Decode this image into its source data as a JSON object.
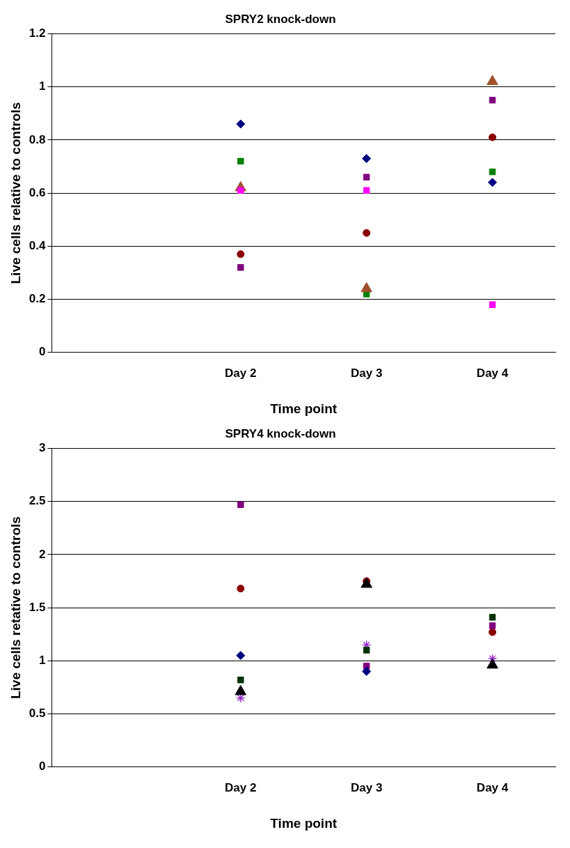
{
  "chart_data": [
    {
      "type": "scatter",
      "title": "SPRY2 knock-down",
      "xlabel": "Time point",
      "ylabel": "Live cells relative to controls",
      "categories": [
        null,
        "Day 2",
        "Day 3",
        "Day 4"
      ],
      "ylim": [
        0,
        1.2
      ],
      "yticks": [
        0,
        0.2,
        0.4,
        0.6,
        0.8,
        1,
        1.2
      ],
      "grid": "y",
      "legend": false,
      "series": [
        {
          "color": "#000080",
          "marker": "diamond",
          "values": [
            null,
            0.86,
            0.73,
            0.64
          ]
        },
        {
          "color": "#ff00ff",
          "marker": "square",
          "values": [
            null,
            0.61,
            0.61,
            0.18
          ]
        },
        {
          "color": "#a0522d",
          "marker": "triangle",
          "values": [
            null,
            0.62,
            0.24,
            1.02
          ]
        },
        {
          "color": "#800080",
          "marker": "square",
          "values": [
            null,
            0.32,
            0.66,
            0.95
          ]
        },
        {
          "color": "#008000",
          "marker": "square",
          "values": [
            null,
            0.72,
            0.22,
            0.68
          ]
        },
        {
          "color": "#8b0000",
          "marker": "circle",
          "values": [
            null,
            0.37,
            0.45,
            0.81
          ]
        }
      ]
    },
    {
      "type": "scatter",
      "title": "SPRY4 knock-down",
      "xlabel": "Time point",
      "ylabel": "Live cells retative to controls",
      "categories": [
        null,
        "Day 2",
        "Day 3",
        "Day 4"
      ],
      "ylim": [
        0,
        3
      ],
      "yticks": [
        0,
        0.5,
        1,
        1.5,
        2,
        2.5,
        3
      ],
      "grid": "y",
      "legend": false,
      "series": [
        {
          "color": "#000080",
          "marker": "diamond",
          "values": [
            null,
            1.05,
            0.9,
            null
          ]
        },
        {
          "color": "#003300",
          "marker": "square",
          "values": [
            null,
            0.82,
            1.1,
            1.41
          ]
        },
        {
          "color": "#000000",
          "marker": "triangle",
          "values": [
            null,
            0.71,
            1.72,
            0.96
          ]
        },
        {
          "color": "#800080",
          "marker": "square",
          "values": [
            null,
            2.47,
            0.95,
            1.33
          ]
        },
        {
          "color": "#9932cc",
          "marker": "cross",
          "values": [
            null,
            0.65,
            1.15,
            1.02
          ]
        },
        {
          "color": "#8b0000",
          "marker": "circle",
          "values": [
            null,
            1.68,
            1.75,
            1.27
          ]
        }
      ]
    }
  ]
}
